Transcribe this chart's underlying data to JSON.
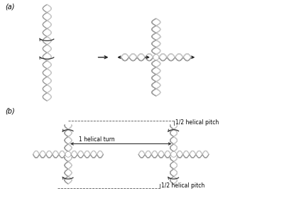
{
  "fig_width": 4.0,
  "fig_height": 3.0,
  "dpi": 100,
  "bg_color": "#ffffff",
  "helix_color1": "#c8c8c8",
  "helix_color2": "#a0a0a0",
  "bar_color": "#d8d8d8",
  "arrow_color": "#222222",
  "text_color": "#000000",
  "label_a": "(a)",
  "label_b": "(b)",
  "label_half_pitch_top": "1/2 helical pitch",
  "label_half_pitch_bot": "1/2 helical pitch",
  "label_helical_turn": "1 helical turn"
}
